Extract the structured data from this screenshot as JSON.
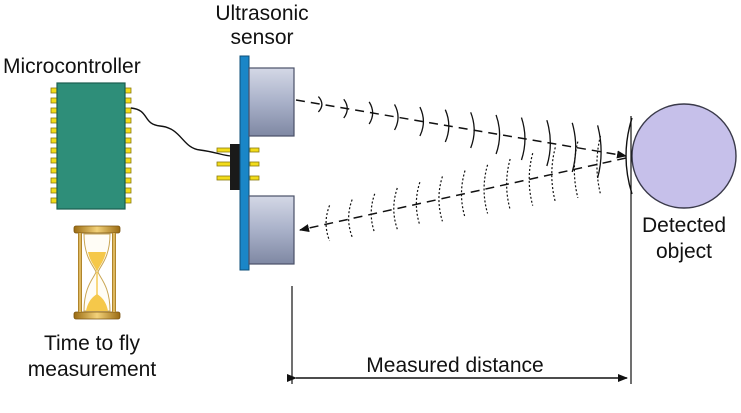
{
  "labels": {
    "sensor_line1": "Ultrasonic",
    "sensor_line2": "sensor",
    "microcontroller": "Microcontroller",
    "time_line1": "Time to fly",
    "time_line2": "measurement",
    "object_line1": "Detected",
    "object_line2": "object",
    "distance": "Measured distance"
  },
  "colors": {
    "chip_body": "#2e8e79",
    "chip_pins": "#f2dc1a",
    "sensor_board": "#1a86c7",
    "transducer": "#a8b0c8",
    "object_fill": "#c6c0ea",
    "hourglass_gold": "#e2b53a",
    "sand": "#f5c84a"
  },
  "icons": {
    "microcontroller": "ic-chip-icon",
    "ultrasonic_sensor": "ultrasonic-sensor-icon",
    "hourglass": "hourglass-icon",
    "object": "circle-object-icon"
  }
}
